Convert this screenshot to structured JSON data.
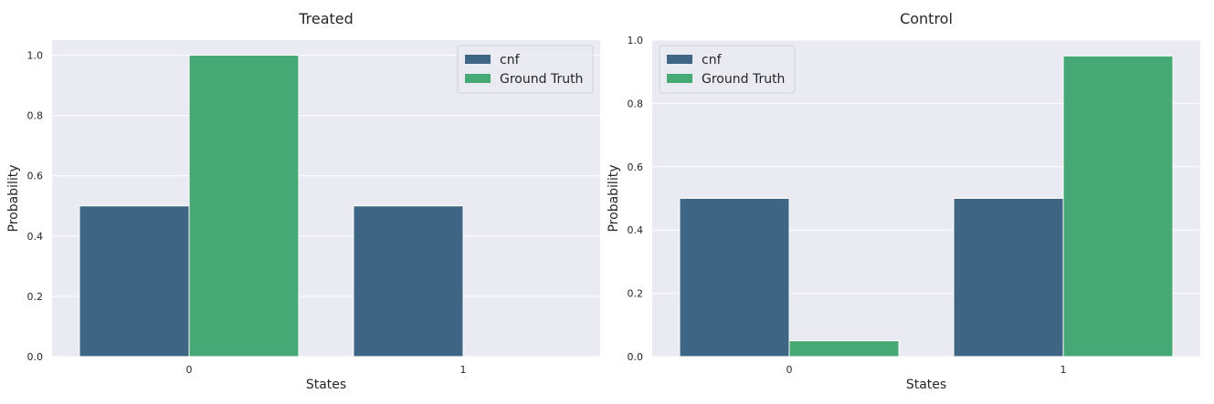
{
  "chart_data": [
    {
      "type": "bar",
      "title": "Treated",
      "xlabel": "States",
      "ylabel": "Probability",
      "categories": [
        "0",
        "1"
      ],
      "series": [
        {
          "name": "cnf",
          "values": [
            0.5,
            0.5
          ]
        },
        {
          "name": "Ground Truth",
          "values": [
            1.0,
            0.0
          ]
        }
      ],
      "ylim": [
        0,
        1.05
      ],
      "yticks": [
        "0.0",
        "0.2",
        "0.4",
        "0.6",
        "0.8",
        "1.0"
      ],
      "legend": "top-right",
      "grid": true
    },
    {
      "type": "bar",
      "title": "Control",
      "xlabel": "States",
      "ylabel": "Probability",
      "categories": [
        "0",
        "1"
      ],
      "series": [
        {
          "name": "cnf",
          "values": [
            0.5,
            0.5
          ]
        },
        {
          "name": "Ground Truth",
          "values": [
            0.05,
            0.95
          ]
        }
      ],
      "ylim": [
        0,
        1.0
      ],
      "yticks": [
        "0.0",
        "0.2",
        "0.4",
        "0.6",
        "0.8",
        "1.0"
      ],
      "legend": "top-left",
      "grid": true
    }
  ],
  "colors": {
    "cnf": "#3e6584",
    "Ground Truth": "#46a874",
    "background": "#eaeaf2",
    "grid": "#ffffff"
  }
}
